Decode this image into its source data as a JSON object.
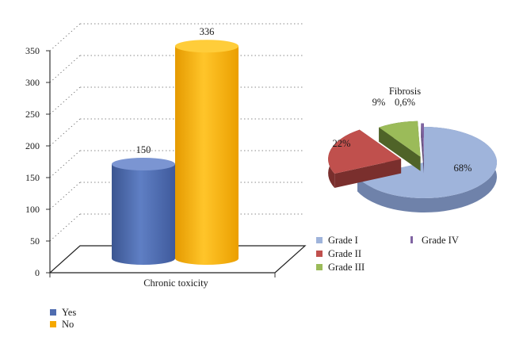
{
  "chart_data": [
    {
      "type": "bar",
      "categories": [
        "Chronic toxicity"
      ],
      "xlabel": "Chronic toxicity",
      "ylim": [
        0,
        350
      ],
      "yticks": [
        0,
        50,
        100,
        150,
        200,
        250,
        300,
        350
      ],
      "grid": true,
      "legend_position": "bottom-left",
      "series": [
        {
          "name": "Yes",
          "values": [
            150
          ],
          "color": "#4f6db0"
        },
        {
          "name": "No",
          "values": [
            336
          ],
          "color": "#f5a800"
        }
      ]
    },
    {
      "type": "pie",
      "title": "Fibrosis",
      "legend_position": "bottom",
      "slices": [
        {
          "name": "Grade I",
          "value": 68,
          "label": "68%",
          "color": "#9fb4db"
        },
        {
          "name": "Grade II",
          "value": 22,
          "label": "22%",
          "color": "#c0504d"
        },
        {
          "name": "Grade III",
          "value": 9,
          "label": "9%",
          "color": "#9bbb59"
        },
        {
          "name": "Grade IV",
          "value": 0.6,
          "label": "0,6%",
          "color": "#8064a2"
        }
      ]
    }
  ]
}
